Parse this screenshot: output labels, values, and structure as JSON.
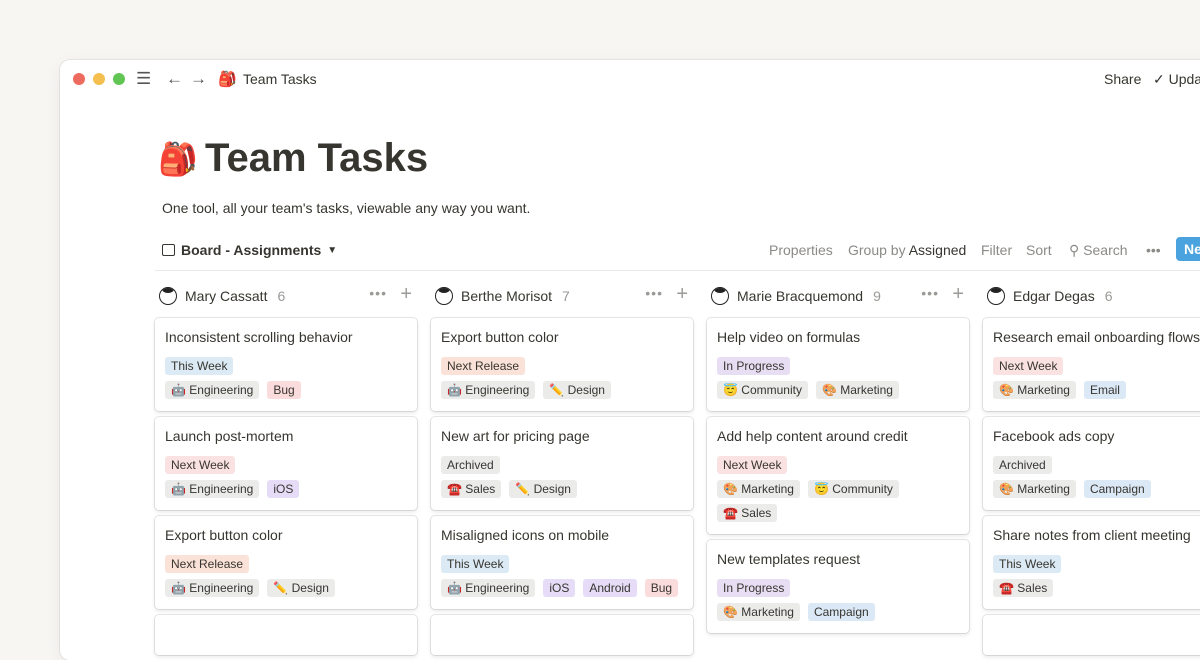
{
  "window": {
    "title": "Team Tasks",
    "page_icon": "backpack-icon",
    "share": "Share",
    "updates": "Updates"
  },
  "page": {
    "icon": "🎒",
    "title": "Team Tasks",
    "description": "One tool, all your team's tasks, viewable any way you want."
  },
  "toolbar": {
    "view": "Board - Assignments",
    "properties": "Properties",
    "group_by": "Group by",
    "group_value": "Assigned",
    "filter": "Filter",
    "sort": "Sort",
    "search": "Search",
    "more": "•••",
    "new": "New",
    "accent": "#4aa3df"
  },
  "tag_colors": {
    "This Week": "#dbeaf5",
    "Next Week": "#fbe2e2",
    "Next Release": "#fae2d8",
    "Archived": "#ebebea",
    "In Progress": "#e8def4",
    "Bug": "#fbdcdc",
    "iOS": "#e6dcf7",
    "Android": "#e6dcf7",
    "Email": "#dbe8f6",
    "Campaign": "#dbe8f6",
    "default": "#ebebea"
  },
  "tag_emoji": {
    "Engineering": "🤖",
    "Design": "✏️",
    "Sales": "☎️",
    "Marketing": "🎨",
    "Community": "😇"
  },
  "columns": [
    {
      "name": "Mary Cassatt",
      "count": "6",
      "cards": [
        {
          "title": "Inconsistent scrolling behavior",
          "status": "This Week",
          "tags": [
            "Engineering",
            "Bug"
          ]
        },
        {
          "title": "Launch post-mortem",
          "status": "Next Week",
          "tags": [
            "Engineering",
            "iOS"
          ]
        },
        {
          "title": "Export button color",
          "status": "Next Release",
          "tags": [
            "Engineering",
            "Design"
          ]
        },
        {
          "title": "",
          "status": "",
          "tags": []
        }
      ]
    },
    {
      "name": "Berthe Morisot",
      "count": "7",
      "cards": [
        {
          "title": "Export button color",
          "status": "Next Release",
          "tags": [
            "Engineering",
            "Design"
          ]
        },
        {
          "title": "New art for pricing page",
          "status": "Archived",
          "tags": [
            "Sales",
            "Design"
          ]
        },
        {
          "title": "Misaligned icons on mobile",
          "status": "This Week",
          "tags": [
            "Engineering",
            "iOS",
            "Android",
            "Bug"
          ]
        },
        {
          "title": "",
          "status": "",
          "tags": []
        }
      ]
    },
    {
      "name": "Marie Bracquemond",
      "count": "9",
      "cards": [
        {
          "title": "Help video on formulas",
          "status": "In Progress",
          "tags": [
            "Community",
            "Marketing"
          ]
        },
        {
          "title": "Add help content around credit",
          "status": "Next Week",
          "tags": [
            "Marketing",
            "Community",
            "Sales"
          ]
        },
        {
          "title": "New templates request",
          "status": "In Progress",
          "tags": [
            "Marketing",
            "Campaign"
          ]
        }
      ]
    },
    {
      "name": "Edgar Degas",
      "count": "6",
      "cards": [
        {
          "title": "Research email onboarding flows",
          "status": "Next Week",
          "tags": [
            "Marketing",
            "Email"
          ]
        },
        {
          "title": "Facebook ads copy",
          "status": "Archived",
          "tags": [
            "Marketing",
            "Campaign"
          ]
        },
        {
          "title": "Share notes from client meeting",
          "status": "This Week",
          "tags": [
            "Sales"
          ]
        },
        {
          "title": "",
          "status": "",
          "tags": []
        }
      ]
    }
  ]
}
